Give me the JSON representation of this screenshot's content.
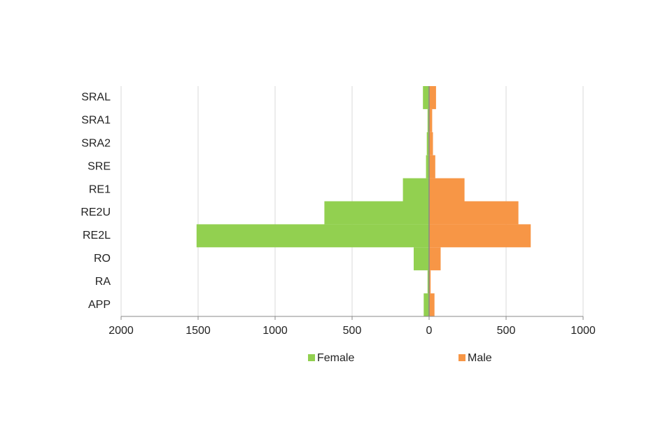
{
  "chart_data": {
    "type": "pyramid",
    "categories": [
      "SRAL",
      "SRA1",
      "SRA2",
      "SRE",
      "RE1",
      "RE2U",
      "RE2L",
      "RO",
      "RA",
      "APP"
    ],
    "series": [
      {
        "name": "Female",
        "color": "#92d050",
        "values": [
          -40,
          -10,
          -15,
          -20,
          -170,
          -680,
          -1510,
          -100,
          -10,
          -35
        ]
      },
      {
        "name": "Male",
        "color": "#f79646",
        "values": [
          45,
          20,
          25,
          40,
          230,
          580,
          660,
          75,
          10,
          35
        ]
      }
    ],
    "xlim": [
      -2000,
      1000
    ],
    "xticks": [
      {
        "value": -2000,
        "label": "2000"
      },
      {
        "value": -1500,
        "label": "1500"
      },
      {
        "value": -1000,
        "label": "1000"
      },
      {
        "value": -500,
        "label": "500"
      },
      0,
      500,
      1000
    ],
    "grid": true,
    "legend": "bottom"
  }
}
